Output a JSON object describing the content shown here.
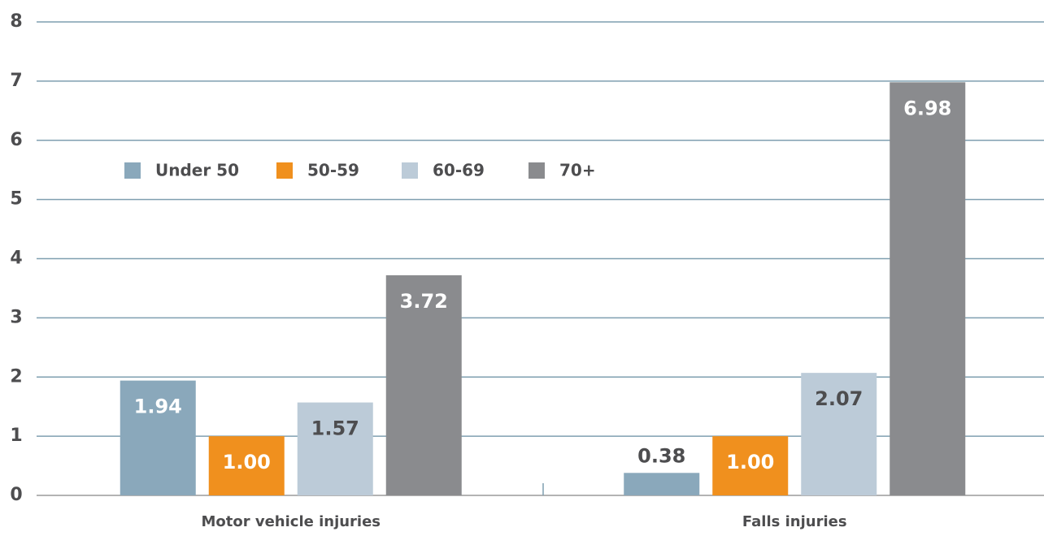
{
  "chart_data": {
    "type": "bar",
    "categories": [
      "Motor vehicle injuries",
      "Falls injuries"
    ],
    "series": [
      {
        "name": "Under 50",
        "color": "#8aa8bb",
        "values": [
          1.94,
          0.38
        ],
        "value_labels": [
          "1.94",
          "0.38"
        ]
      },
      {
        "name": "50-59",
        "color": "#f0901e",
        "values": [
          1.0,
          1.0
        ],
        "value_labels": [
          "1.00",
          "1.00"
        ]
      },
      {
        "name": "60-69",
        "color": "#bccbd8",
        "values": [
          1.57,
          2.07
        ],
        "value_labels": [
          "1.57",
          "2.07"
        ]
      },
      {
        "name": "70+",
        "color": "#8a8b8e",
        "values": [
          3.72,
          6.98
        ],
        "value_labels": [
          "3.72",
          "6.98"
        ]
      }
    ],
    "ylim": [
      0,
      8
    ],
    "yticks": [
      0,
      1,
      2,
      3,
      4,
      5,
      6,
      7,
      8
    ],
    "grid": true,
    "legend": "top-left"
  }
}
